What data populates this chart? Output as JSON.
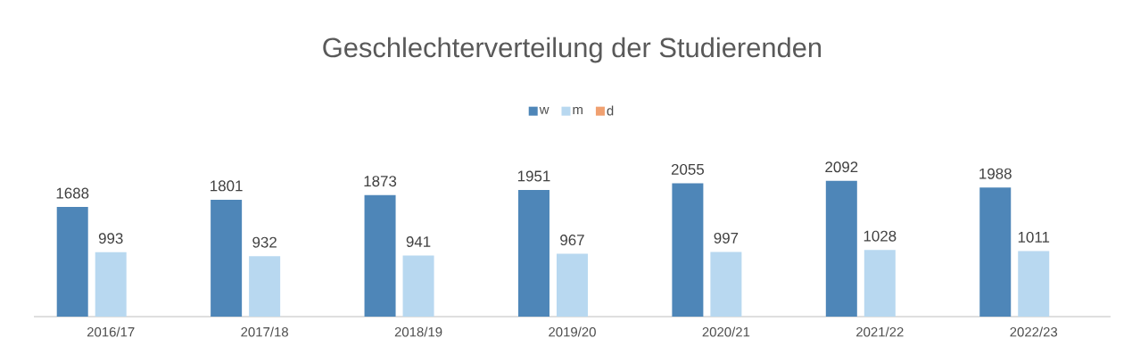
{
  "chart_data": {
    "type": "bar",
    "title": "Geschlechterverteilung der Studierenden",
    "categories": [
      "2016/17",
      "2017/18",
      "2018/19",
      "2019/20",
      "2020/21",
      "2021/22",
      "2022/23"
    ],
    "series": [
      {
        "name": "w",
        "color": "#4e86b8",
        "values": [
          1688,
          1801,
          1873,
          1951,
          2055,
          2092,
          1988
        ]
      },
      {
        "name": "m",
        "color": "#b8d8f0",
        "values": [
          993,
          932,
          941,
          967,
          997,
          1028,
          1011
        ]
      },
      {
        "name": "d",
        "color": "#f0a070",
        "values": [
          null,
          null,
          null,
          null,
          null,
          null,
          null
        ]
      }
    ],
    "data_labels": true,
    "legend": "top"
  }
}
